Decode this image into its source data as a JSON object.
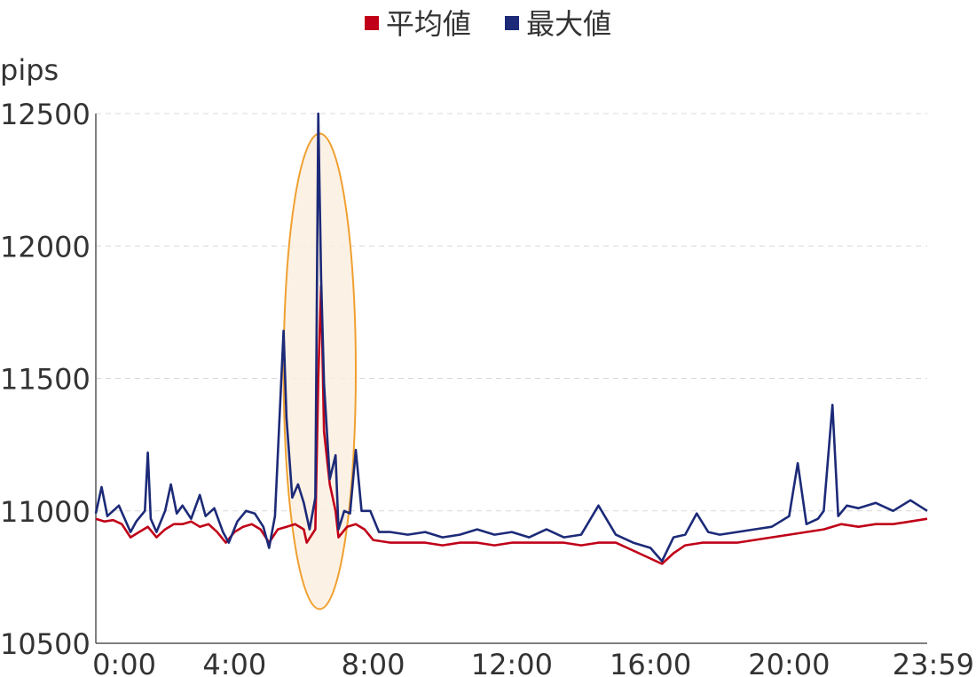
{
  "legend": {
    "items": [
      {
        "label": "平均値",
        "color": "#c00018"
      },
      {
        "label": "最大値",
        "color": "#1c2a78"
      }
    ]
  },
  "chart_data": {
    "type": "line",
    "ylabel": "pips",
    "ylim": [
      10500,
      12500
    ],
    "yticks": [
      12500,
      12000,
      11500,
      11000,
      10500
    ],
    "xlim_minutes": [
      0,
      1439
    ],
    "xticks": [
      "0:00",
      "4:00",
      "8:00",
      "12:00",
      "16:00",
      "20:00",
      "23:59"
    ],
    "grid": "horizontal-dashed",
    "legend_position": "top-center",
    "highlight": {
      "shape": "ellipse",
      "from": "5:25",
      "to": "7:30",
      "color": "#f0a030"
    },
    "series": [
      {
        "name": "平均値",
        "color": "#c00018",
        "points": [
          [
            "0:00",
            10970
          ],
          [
            "0:15",
            10960
          ],
          [
            "0:30",
            10965
          ],
          [
            "0:45",
            10950
          ],
          [
            "1:00",
            10900
          ],
          [
            "1:15",
            10920
          ],
          [
            "1:30",
            10940
          ],
          [
            "1:45",
            10900
          ],
          [
            "2:00",
            10930
          ],
          [
            "2:15",
            10950
          ],
          [
            "2:30",
            10950
          ],
          [
            "2:45",
            10960
          ],
          [
            "3:00",
            10940
          ],
          [
            "3:15",
            10950
          ],
          [
            "3:30",
            10920
          ],
          [
            "3:45",
            10880
          ],
          [
            "4:00",
            10920
          ],
          [
            "4:15",
            10940
          ],
          [
            "4:30",
            10950
          ],
          [
            "4:45",
            10930
          ],
          [
            "5:00",
            10880
          ],
          [
            "5:15",
            10930
          ],
          [
            "5:30",
            10940
          ],
          [
            "5:45",
            10950
          ],
          [
            "6:00",
            10930
          ],
          [
            "6:05",
            10880
          ],
          [
            "6:20",
            10930
          ],
          [
            "6:25",
            11500
          ],
          [
            "6:30",
            11850
          ],
          [
            "6:35",
            11300
          ],
          [
            "6:45",
            11100
          ],
          [
            "6:55",
            11000
          ],
          [
            "7:00",
            10900
          ],
          [
            "7:15",
            10940
          ],
          [
            "7:30",
            10950
          ],
          [
            "7:45",
            10930
          ],
          [
            "8:00",
            10890
          ],
          [
            "8:30",
            10880
          ],
          [
            "9:00",
            10880
          ],
          [
            "9:30",
            10880
          ],
          [
            "10:00",
            10870
          ],
          [
            "10:30",
            10880
          ],
          [
            "11:00",
            10880
          ],
          [
            "11:30",
            10870
          ],
          [
            "12:00",
            10880
          ],
          [
            "12:30",
            10880
          ],
          [
            "13:00",
            10880
          ],
          [
            "13:30",
            10880
          ],
          [
            "14:00",
            10870
          ],
          [
            "14:30",
            10880
          ],
          [
            "15:00",
            10880
          ],
          [
            "15:30",
            10850
          ],
          [
            "16:00",
            10820
          ],
          [
            "16:20",
            10800
          ],
          [
            "16:40",
            10840
          ],
          [
            "17:00",
            10870
          ],
          [
            "17:30",
            10880
          ],
          [
            "18:00",
            10880
          ],
          [
            "18:30",
            10880
          ],
          [
            "19:00",
            10890
          ],
          [
            "19:30",
            10900
          ],
          [
            "20:00",
            10910
          ],
          [
            "20:30",
            10920
          ],
          [
            "21:00",
            10930
          ],
          [
            "21:30",
            10950
          ],
          [
            "22:00",
            10940
          ],
          [
            "22:30",
            10950
          ],
          [
            "23:00",
            10950
          ],
          [
            "23:30",
            10960
          ],
          [
            "23:59",
            10970
          ]
        ]
      },
      {
        "name": "最大値",
        "color": "#1c2a78",
        "points": [
          [
            "0:00",
            10990
          ],
          [
            "0:10",
            11090
          ],
          [
            "0:20",
            10980
          ],
          [
            "0:40",
            11020
          ],
          [
            "1:00",
            10920
          ],
          [
            "1:10",
            10960
          ],
          [
            "1:25",
            11000
          ],
          [
            "1:30",
            11220
          ],
          [
            "1:35",
            10970
          ],
          [
            "1:45",
            10920
          ],
          [
            "2:00",
            11000
          ],
          [
            "2:10",
            11100
          ],
          [
            "2:20",
            10990
          ],
          [
            "2:30",
            11020
          ],
          [
            "2:45",
            10970
          ],
          [
            "3:00",
            11060
          ],
          [
            "3:10",
            10980
          ],
          [
            "3:25",
            11010
          ],
          [
            "3:40",
            10920
          ],
          [
            "3:50",
            10880
          ],
          [
            "4:05",
            10960
          ],
          [
            "4:20",
            11000
          ],
          [
            "4:35",
            10990
          ],
          [
            "4:50",
            10940
          ],
          [
            "5:00",
            10860
          ],
          [
            "5:10",
            10980
          ],
          [
            "5:25",
            11680
          ],
          [
            "5:30",
            11350
          ],
          [
            "5:40",
            11050
          ],
          [
            "5:50",
            11100
          ],
          [
            "6:00",
            11030
          ],
          [
            "6:10",
            10930
          ],
          [
            "6:20",
            11050
          ],
          [
            "6:25",
            12500
          ],
          [
            "6:30",
            11880
          ],
          [
            "6:35",
            11480
          ],
          [
            "6:45",
            11120
          ],
          [
            "6:55",
            11210
          ],
          [
            "7:00",
            10930
          ],
          [
            "7:10",
            11000
          ],
          [
            "7:20",
            10990
          ],
          [
            "7:30",
            11230
          ],
          [
            "7:40",
            11000
          ],
          [
            "7:55",
            11000
          ],
          [
            "8:10",
            10920
          ],
          [
            "8:30",
            10920
          ],
          [
            "9:00",
            10910
          ],
          [
            "9:30",
            10920
          ],
          [
            "10:00",
            10900
          ],
          [
            "10:30",
            10910
          ],
          [
            "11:00",
            10930
          ],
          [
            "11:30",
            10910
          ],
          [
            "12:00",
            10920
          ],
          [
            "12:30",
            10900
          ],
          [
            "13:00",
            10930
          ],
          [
            "13:30",
            10900
          ],
          [
            "14:00",
            10910
          ],
          [
            "14:30",
            11020
          ],
          [
            "15:00",
            10910
          ],
          [
            "15:30",
            10880
          ],
          [
            "16:00",
            10860
          ],
          [
            "16:20",
            10810
          ],
          [
            "16:40",
            10900
          ],
          [
            "17:00",
            10910
          ],
          [
            "17:20",
            10990
          ],
          [
            "17:40",
            10920
          ],
          [
            "18:00",
            10910
          ],
          [
            "18:30",
            10920
          ],
          [
            "19:00",
            10930
          ],
          [
            "19:30",
            10940
          ],
          [
            "20:00",
            10980
          ],
          [
            "20:15",
            11180
          ],
          [
            "20:30",
            10950
          ],
          [
            "20:50",
            10970
          ],
          [
            "21:00",
            11000
          ],
          [
            "21:15",
            11400
          ],
          [
            "21:25",
            10980
          ],
          [
            "21:40",
            11020
          ],
          [
            "22:00",
            11010
          ],
          [
            "22:30",
            11030
          ],
          [
            "23:00",
            11000
          ],
          [
            "23:30",
            11040
          ],
          [
            "23:59",
            11000
          ]
        ]
      }
    ]
  }
}
